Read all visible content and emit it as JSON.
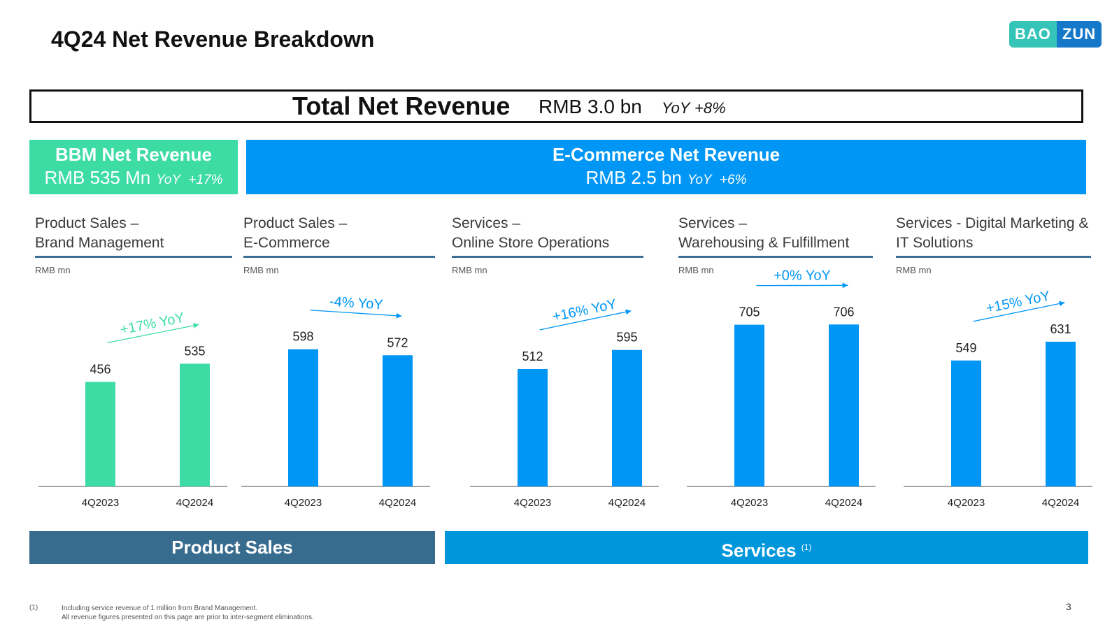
{
  "title": "4Q24 Net Revenue Breakdown",
  "logo": {
    "part1": "BAO",
    "part2": "ZUN"
  },
  "total": {
    "label": "Total Net Revenue",
    "value": "RMB 3.0 bn",
    "yoy_label": "YoY",
    "yoy_value": "+8%"
  },
  "bbm": {
    "title": "BBM Net Revenue",
    "value": "RMB 535 Mn",
    "yoy_label": "YoY",
    "yoy_value": "+17%"
  },
  "ecommerce": {
    "title": "E-Commerce Net Revenue",
    "value": "RMB 2.5 bn",
    "yoy_label": "YoY",
    "yoy_value": "+6%"
  },
  "panels": [
    {
      "title_line1": "Product Sales –",
      "title_line2": "Brand Management",
      "unit": "RMB mn"
    },
    {
      "title_line1": "Product Sales –",
      "title_line2": "E-Commerce",
      "unit": "RMB mn"
    },
    {
      "title_line1": "Services –",
      "title_line2": "Online Store Operations",
      "unit": "RMB mn"
    },
    {
      "title_line1": "Services –",
      "title_line2": "Warehousing & Fulfillment",
      "unit": "RMB mn"
    },
    {
      "title_line1": "Services - Digital Marketing &",
      "title_line2": "IT Solutions",
      "unit": "RMB mn"
    }
  ],
  "chart_data": [
    {
      "type": "bar",
      "title": "Product Sales – Brand Management",
      "ylabel": "RMB mn",
      "categories": [
        "4Q2023",
        "4Q2024"
      ],
      "values": [
        456,
        535
      ],
      "annotation": "+17% YoY",
      "color": "#3ddca5"
    },
    {
      "type": "bar",
      "title": "Product Sales – E-Commerce",
      "ylabel": "RMB mn",
      "categories": [
        "4Q2023",
        "4Q2024"
      ],
      "values": [
        598,
        572
      ],
      "annotation": "-4% YoY",
      "color": "#0096f5"
    },
    {
      "type": "bar",
      "title": "Services – Online Store Operations",
      "ylabel": "RMB mn",
      "categories": [
        "4Q2023",
        "4Q2024"
      ],
      "values": [
        512,
        595
      ],
      "annotation": "+16% YoY",
      "color": "#0096f5"
    },
    {
      "type": "bar",
      "title": "Services – Warehousing & Fulfillment",
      "ylabel": "RMB mn",
      "categories": [
        "4Q2023",
        "4Q2024"
      ],
      "values": [
        705,
        706
      ],
      "annotation": "+0% YoY",
      "color": "#0096f5"
    },
    {
      "type": "bar",
      "title": "Services - Digital Marketing & IT Solutions",
      "ylabel": "RMB mn",
      "categories": [
        "4Q2023",
        "4Q2024"
      ],
      "values": [
        549,
        631
      ],
      "annotation": "+15% YoY",
      "color": "#0096f5"
    }
  ],
  "footer": {
    "product_sales": "Product Sales",
    "services": "Services",
    "services_note": "(1)"
  },
  "footnote": {
    "marker": "(1)",
    "line1": "Including service revenue of 1 million from Brand Management.",
    "line2": "All revenue figures presented on this page are prior to inter-segment eliminations."
  },
  "page_number": "3",
  "colors": {
    "bbm": "#3ddca5",
    "ecommerce": "#0096f5",
    "product_bar": "#386c8f",
    "services_bar": "#0096dc",
    "rule": "#3d6e93"
  }
}
